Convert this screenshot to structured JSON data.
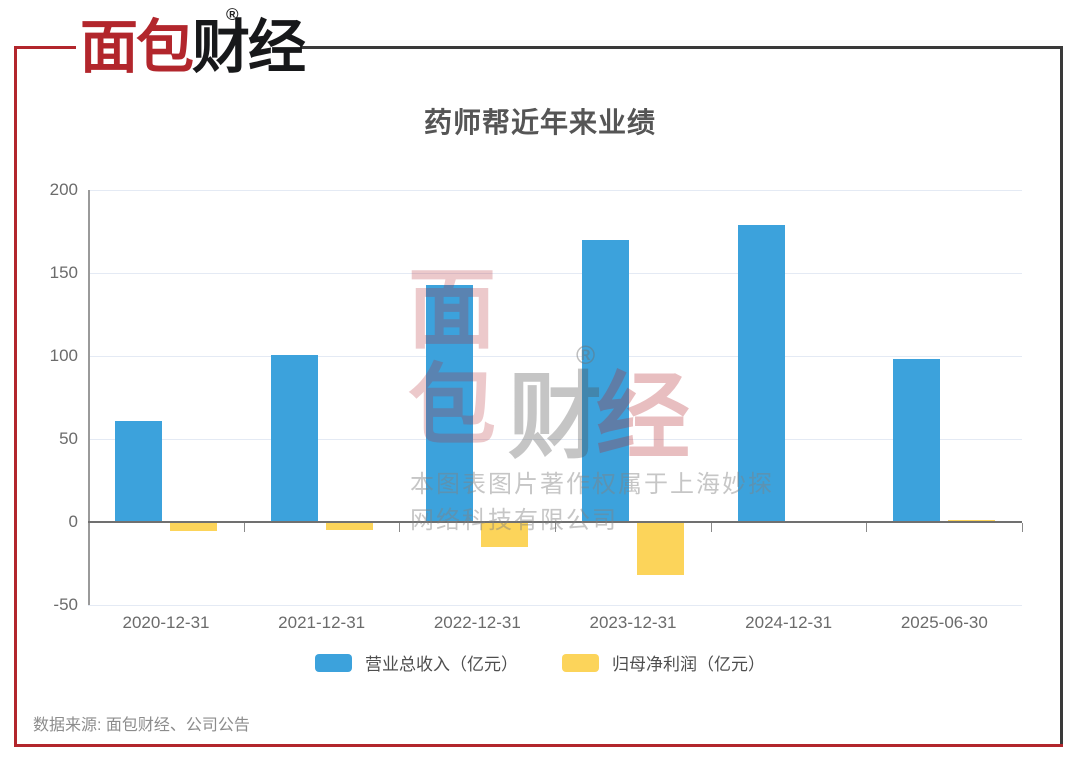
{
  "brand": {
    "logo_red": "面包",
    "logo_dark": "财经",
    "registered": "®",
    "accent_red": "#B2262C",
    "frame_dark": "#3A3A3A"
  },
  "chart_data": {
    "type": "bar",
    "title": "药师帮近年来业绩",
    "categories": [
      "2020-12-31",
      "2021-12-31",
      "2022-12-31",
      "2023-12-31",
      "2024-12-31",
      "2025-06-30"
    ],
    "series": [
      {
        "name": "营业总收入（亿元）",
        "color": "#3CA2DC",
        "values": [
          60.6,
          100.9,
          142.8,
          169.7,
          179.1,
          98.1
        ]
      },
      {
        "name": "归母净利润（亿元）",
        "color": "#FCD45A",
        "values": [
          -5.7,
          -5.0,
          -15.0,
          -31.9,
          0.5,
          1.0
        ]
      }
    ],
    "ylim": [
      -50,
      200
    ],
    "yticks": [
      200,
      150,
      100,
      50,
      0,
      -50
    ],
    "grid": true,
    "legend_position": "bottom"
  },
  "watermark": {
    "logo_left_top": "面",
    "logo_left_bottom": "包",
    "logo_right_1": "财",
    "logo_right_2": "经",
    "registered": "®",
    "line1": "本图表图片著作权属于上海妙探",
    "line2": "网络科技有限公司"
  },
  "footer": {
    "source": "数据来源: 面包财经、公司公告"
  }
}
